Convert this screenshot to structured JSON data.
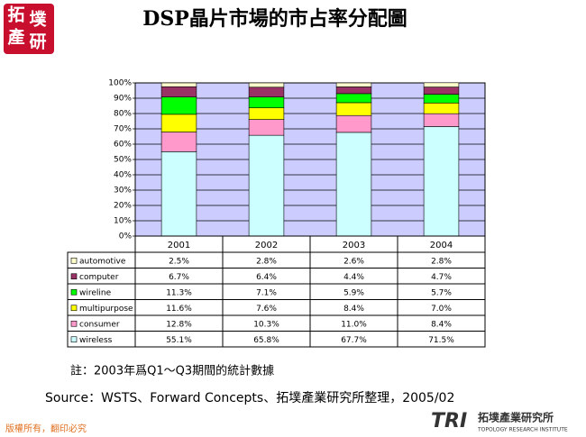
{
  "header": {
    "logo": [
      "拓",
      "墣",
      "產",
      "研"
    ]
  },
  "chart_data": {
    "type": "stacked_bar_table",
    "title": "DSP晶片市場的市占率分配圖",
    "categories": [
      "2001",
      "2002",
      "2003",
      "2004"
    ],
    "series": [
      {
        "name": "wireless",
        "color": "#ccffff",
        "values": [
          55.1,
          65.8,
          67.7,
          71.5
        ],
        "value_labels": [
          "55.1%",
          "65.8%",
          "67.7%",
          "71.5%"
        ]
      },
      {
        "name": "consumer",
        "color": "#ff99cc",
        "values": [
          12.8,
          10.3,
          11.0,
          8.4
        ],
        "value_labels": [
          "12.8%",
          "10.3%",
          "11.0%",
          "8.4%"
        ]
      },
      {
        "name": "multipurpose",
        "color": "#ffff00",
        "values": [
          11.6,
          7.6,
          8.4,
          7.0
        ],
        "value_labels": [
          "11.6%",
          "7.6%",
          "8.4%",
          "7.0%"
        ]
      },
      {
        "name": "wireline",
        "color": "#00ff00",
        "values": [
          11.3,
          7.1,
          5.9,
          5.7
        ],
        "value_labels": [
          "11.3%",
          "7.1%",
          "5.9%",
          "5.7%"
        ]
      },
      {
        "name": "computer",
        "color": "#993366",
        "values": [
          6.7,
          6.4,
          4.4,
          4.7
        ],
        "value_labels": [
          "6.7%",
          "6.4%",
          "4.4%",
          "4.7%"
        ]
      },
      {
        "name": "automotive",
        "color": "#ffffcc",
        "values": [
          2.5,
          2.8,
          2.6,
          2.8
        ],
        "value_labels": [
          "2.5%",
          "2.8%",
          "2.6%",
          "2.8%"
        ]
      }
    ],
    "ylim": [
      0,
      100
    ],
    "yticks": [
      {
        "value": 0,
        "label": "0%"
      },
      {
        "value": 10,
        "label": "10%"
      },
      {
        "value": 20,
        "label": "20%"
      },
      {
        "value": 30,
        "label": "30%"
      },
      {
        "value": 40,
        "label": "40%"
      },
      {
        "value": 50,
        "label": "50%"
      },
      {
        "value": 60,
        "label": "60%"
      },
      {
        "value": 70,
        "label": "70%"
      },
      {
        "value": 80,
        "label": "80%"
      },
      {
        "value": 90,
        "label": "90%"
      },
      {
        "value": 100,
        "label": "100%"
      }
    ],
    "grid": true,
    "plot_background": "#ccccff"
  },
  "notes": [
    "註：2003年爲Q1～Q3期間的統計數據",
    "Source：WSTS、Forward Concepts、拓墣產業研究所整理，2005/02"
  ],
  "footer": {
    "copyright": "版權所有，翻印必究",
    "brand": "TRI",
    "brand_name": "拓墣產業研究所",
    "brand_sub": "TOPOLOGY RESEARCH INSTITUTE"
  }
}
